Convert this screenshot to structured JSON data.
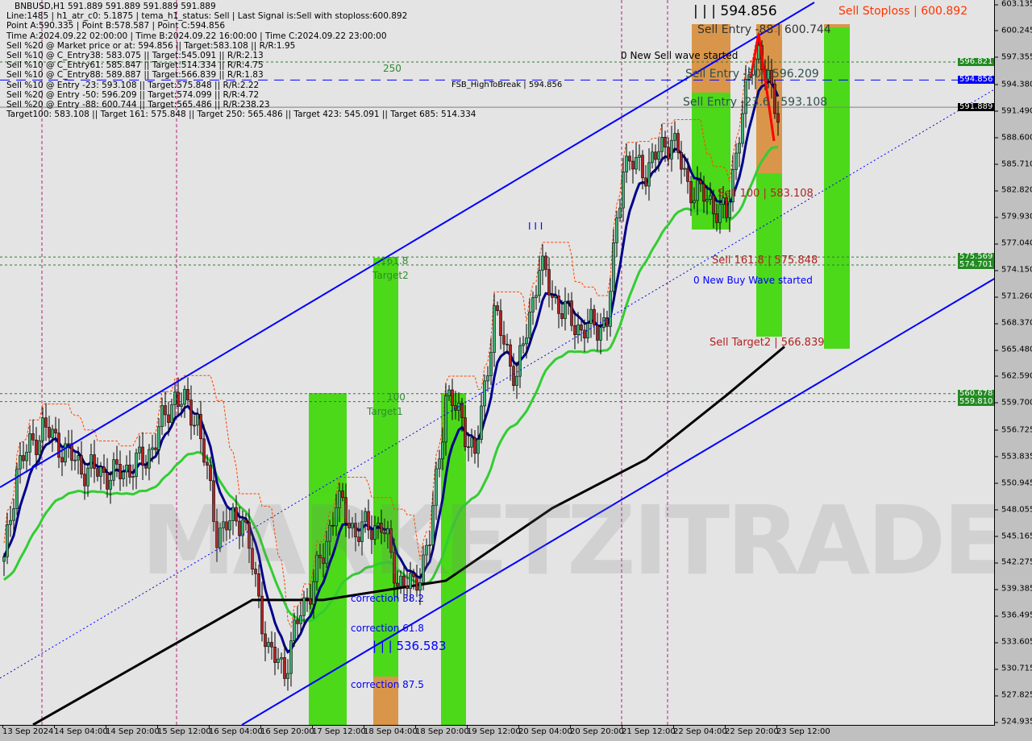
{
  "header": {
    "title": "BNBUSD,H1  591.889 591.889 591.889 591.889",
    "lines": [
      "Line:1485 | h1_atr_c0: 5.1875 | tema_h1_status: Sell | Last Signal is:Sell with stoploss:600.892",
      "Point A:590.335 | Point B:578.587 | Point C:594.856",
      "Time A:2024.09.22 02:00:00 | Time B:2024.09.22 16:00:00 | Time C:2024.09.22 23:00:00",
      "Sell %20 @ Market price or at: 594.856 || Target:583.108 || R/R:1.95",
      "Sell %10 @ C_Entry38: 583.075 || Target:545.091 || R/R:2.13",
      "Sell %10 @ C_Entry61: 585.847 || Target:514.334 || R/R:4.75",
      "Sell %10 @ C_Entry88: 589.887 || Target:566.839 || R/R:1.83",
      "Sell %10 @ Entry -23: 593.108 || Target:575.848 || R/R:2.22",
      "Sell %20 @ Entry -50: 596.209 || Target:574.099 || R/R:4.72",
      "Sell %20 @ Entry -88: 600.744 || Target:565.486 || R/R:238.23",
      "Target100: 583.108 || Target 161: 575.848 || Target 250: 565.486 || Target 423: 545.091 || Target 685: 514.334"
    ]
  },
  "watermark": "MARKETZITRADE",
  "annotations": {
    "fsb": "FSB_HighToBreak | 594.856",
    "fib250": "250",
    "fib161": "161.8",
    "target2": "Target2",
    "fib100": "100",
    "target1": "Target1",
    "corr382": "correction 38.2",
    "corr618": "correction 61.8",
    "corr875": "correction 87.5",
    "low_mark": "| | | 536.583",
    "high_mark": "| | | 594.856",
    "stoploss": "Sell Stoploss | 600.892",
    "entry88": "Sell Entry -88 | 600.744",
    "new_sell": "0 New Sell wave started",
    "entry50": "Sell Entry -50 | 596.209",
    "entry236": "Sell Entry -23.6 | 593.108",
    "sell100": "Sell 100 | 583.108",
    "sell161": "Sell 161.8 | 575.848",
    "new_buy": "0 New Buy Wave started",
    "sell_target2": "Sell Target2 | 566.839",
    "wave_mark": "I I I"
  },
  "price_tags": [
    {
      "value": "596.821",
      "color": "#228b22"
    },
    {
      "value": "594.856",
      "color": "#0000ff"
    },
    {
      "value": "591.889",
      "color": "#000000"
    },
    {
      "value": "575.569",
      "color": "#228b22"
    },
    {
      "value": "574.701",
      "color": "#228b22"
    },
    {
      "value": "560.678",
      "color": "#228b22"
    },
    {
      "value": "559.810",
      "color": "#228b22"
    }
  ],
  "chart_data": {
    "type": "candlestick",
    "symbol": "BNBUSD",
    "timeframe": "H1",
    "ylim": [
      524.935,
      603.135
    ],
    "y_ticks": [
      "603.135",
      "600.245",
      "597.355",
      "594.380",
      "591.490",
      "588.600",
      "585.710",
      "582.820",
      "579.930",
      "577.040",
      "574.150",
      "571.260",
      "568.370",
      "565.480",
      "562.590",
      "559.700",
      "556.725",
      "553.835",
      "550.945",
      "548.055",
      "545.165",
      "542.275",
      "539.385",
      "536.495",
      "533.605",
      "530.715",
      "527.825",
      "524.935"
    ],
    "x_ticks": [
      "13 Sep 2024",
      "14 Sep 04:00",
      "14 Sep 20:00",
      "15 Sep 12:00",
      "16 Sep 04:00",
      "16 Sep 20:00",
      "17 Sep 12:00",
      "18 Sep 04:00",
      "18 Sep 20:00",
      "19 Sep 12:00",
      "20 Sep 04:00",
      "20 Sep 20:00",
      "21 Sep 12:00",
      "22 Sep 04:00",
      "22 Sep 20:00",
      "23 Sep 12:00"
    ],
    "close_path": [
      [
        "2024-09-13 12:00",
        542.1
      ],
      [
        "2024-09-13 16:00",
        552.6
      ],
      [
        "2024-09-14 00:00",
        557.0
      ],
      [
        "2024-09-14 12:00",
        552.6
      ],
      [
        "2024-09-14 22:00",
        551.8
      ],
      [
        "2024-09-15 08:00",
        553.5
      ],
      [
        "2024-09-15 17:00",
        560.5
      ],
      [
        "2024-09-16 00:00",
        557.9
      ],
      [
        "2024-09-16 06:00",
        545.6
      ],
      [
        "2024-09-16 14:00",
        547.4
      ],
      [
        "2024-09-16 22:00",
        532.5
      ],
      [
        "2024-09-17 03:00",
        530.7
      ],
      [
        "2024-09-17 08:00",
        536.9
      ],
      [
        "2024-09-17 15:00",
        543.0
      ],
      [
        "2024-09-17 19:00",
        549.1
      ],
      [
        "2024-09-18 01:00",
        545.6
      ],
      [
        "2024-09-18 09:00",
        546.5
      ],
      [
        "2024-09-18 14:00",
        540.4
      ],
      [
        "2024-09-18 19:00",
        539.5
      ],
      [
        "2024-09-19 00:00",
        544.7
      ],
      [
        "2024-09-19 05:00",
        560.5
      ],
      [
        "2024-09-19 10:00",
        557.9
      ],
      [
        "2024-09-19 14:00",
        553.5
      ],
      [
        "2024-09-19 20:00",
        569.3
      ],
      [
        "2024-09-20 03:00",
        562.3
      ],
      [
        "2024-09-20 10:00",
        574.6
      ],
      [
        "2024-09-20 16:00",
        570.2
      ],
      [
        "2024-09-20 23:00",
        567.6
      ],
      [
        "2024-09-21 07:00",
        568.5
      ],
      [
        "2024-09-21 12:00",
        586.0
      ],
      [
        "2024-09-21 19:00",
        585.1
      ],
      [
        "2024-09-22 03:00",
        588.7
      ],
      [
        "2024-09-22 08:00",
        583.4
      ],
      [
        "2024-09-22 15:00",
        581.6
      ],
      [
        "2024-09-22 20:00",
        579.9
      ],
      [
        "2024-09-23 00:00",
        589.5
      ],
      [
        "2024-09-23 04:00",
        596.5
      ],
      [
        "2024-09-23 06:00",
        598.3
      ],
      [
        "2024-09-23 10:00",
        593.0
      ],
      [
        "2024-09-23 12:00",
        591.3
      ]
    ],
    "long_ma": [
      [
        "2024-09-13 21:00",
        524.6
      ],
      [
        "2024-09-16 17:00",
        538.2
      ],
      [
        "2024-09-17 15:00",
        538.2
      ],
      [
        "2024-09-19 05:00",
        540.3
      ],
      [
        "2024-09-20 14:00",
        548.2
      ],
      [
        "2024-09-21 19:00",
        553.5
      ],
      [
        "2024-09-22 20:00",
        560.5
      ],
      [
        "2024-09-23 14:00",
        565.8
      ]
    ],
    "horizontal_levels": [
      596.821,
      594.856,
      591.889,
      575.569,
      574.701,
      560.678,
      559.81
    ],
    "colors": {
      "bull": "#3cb371",
      "bear": "#b22222",
      "fast_ma": "#00008b",
      "mid_ma": "#32cd32",
      "long_ma": "#000000",
      "channel": "#0000ff",
      "zone_green": "#4cd91a",
      "zone_orange": "#d9964a"
    }
  }
}
